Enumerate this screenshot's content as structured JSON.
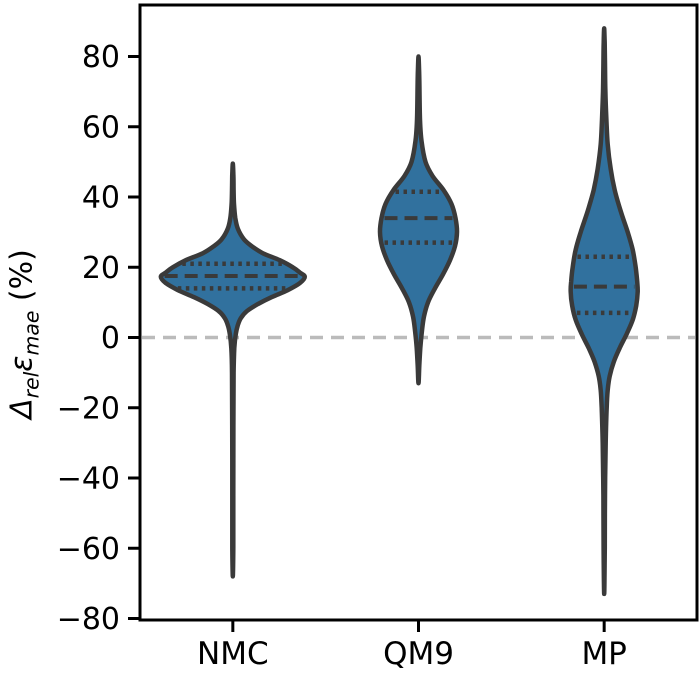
{
  "chart_data": {
    "type": "violin",
    "title": "",
    "xlabel": "",
    "ylabel_text": "Δ_rel ε_mae (%)",
    "ylabel": {
      "delta": "Δ",
      "sub_delta": "rel",
      "epsilon": "ε",
      "sub_epsilon": "mae",
      "unit": " (%)"
    },
    "categories": [
      "NMC",
      "QM9",
      "MP"
    ],
    "ylim": [
      -80,
      95
    ],
    "grid": false,
    "reference_line_y": 0,
    "yticks": [
      {
        "value": 80,
        "label": "80"
      },
      {
        "value": 60,
        "label": "60"
      },
      {
        "value": 40,
        "label": "40"
      },
      {
        "value": 20,
        "label": "20"
      },
      {
        "value": 0,
        "label": "0"
      },
      {
        "value": -20,
        "label": "−20"
      },
      {
        "value": -40,
        "label": "−40"
      },
      {
        "value": -60,
        "label": "−60"
      },
      {
        "value": -80,
        "label": "−80"
      }
    ],
    "violins": [
      {
        "label": "NMC",
        "median": 17.5,
        "q1": 14,
        "q3": 21,
        "min": -68,
        "max": 49.5,
        "width_profile": [
          [
            49.5,
            0
          ],
          [
            46,
            0.6
          ],
          [
            42,
            0.8
          ],
          [
            38,
            1.2
          ],
          [
            34,
            2.5
          ],
          [
            31,
            5
          ],
          [
            28,
            11
          ],
          [
            26,
            19
          ],
          [
            24,
            30
          ],
          [
            22,
            47
          ],
          [
            20,
            60
          ],
          [
            18.5,
            67
          ],
          [
            17.3,
            72
          ],
          [
            15.5,
            67
          ],
          [
            13.5,
            55
          ],
          [
            11.5,
            39
          ],
          [
            9.5,
            25
          ],
          [
            7.5,
            14
          ],
          [
            5.5,
            8
          ],
          [
            3.5,
            5
          ],
          [
            1,
            3
          ],
          [
            -3,
            1.5
          ],
          [
            -10,
            0.8
          ],
          [
            -25,
            0.6
          ],
          [
            -45,
            0.5
          ],
          [
            -60,
            0.5
          ],
          [
            -68,
            0
          ]
        ]
      },
      {
        "label": "QM9",
        "median": 34,
        "q1": 27,
        "q3": 41.5,
        "min": -13,
        "max": 80,
        "width_profile": [
          [
            80,
            0
          ],
          [
            76,
            0.6
          ],
          [
            70,
            1
          ],
          [
            62,
            1.5
          ],
          [
            56,
            3
          ],
          [
            50,
            7
          ],
          [
            46,
            14
          ],
          [
            42,
            25
          ],
          [
            38,
            33
          ],
          [
            34,
            37
          ],
          [
            30,
            38.5
          ],
          [
            26,
            36.5
          ],
          [
            22,
            31.5
          ],
          [
            18,
            24.5
          ],
          [
            14,
            16.5
          ],
          [
            10,
            9.5
          ],
          [
            6,
            5.5
          ],
          [
            2,
            3.5
          ],
          [
            -3,
            1.8
          ],
          [
            -8,
            0.8
          ],
          [
            -13,
            0
          ]
        ]
      },
      {
        "label": "MP",
        "median": 14.5,
        "q1": 7,
        "q3": 23,
        "min": -73,
        "max": 88,
        "width_profile": [
          [
            88,
            0
          ],
          [
            84,
            0.5
          ],
          [
            78,
            0.8
          ],
          [
            70,
            1.2
          ],
          [
            62,
            2.2
          ],
          [
            55,
            3.5
          ],
          [
            48,
            6.5
          ],
          [
            42,
            10.5
          ],
          [
            36,
            16.5
          ],
          [
            30,
            23.5
          ],
          [
            25,
            28.5
          ],
          [
            20,
            31.5
          ],
          [
            16,
            33
          ],
          [
            13,
            33.5
          ],
          [
            9,
            32
          ],
          [
            5,
            28.5
          ],
          [
            1,
            22.5
          ],
          [
            -3,
            15.5
          ],
          [
            -7,
            9.5
          ],
          [
            -11,
            5.5
          ],
          [
            -15,
            3.5
          ],
          [
            -20,
            2.5
          ],
          [
            -30,
            1.5
          ],
          [
            -45,
            0.8
          ],
          [
            -60,
            0.6
          ],
          [
            -73,
            0
          ]
        ]
      }
    ],
    "colors": {
      "fill": "#31719E",
      "edge": "#3A3A3A",
      "quartile": "#3A3A3A",
      "zero_line": "#BBBBBB",
      "axis": "#000000",
      "text": "#000000",
      "background": "#FFFFFF"
    }
  }
}
